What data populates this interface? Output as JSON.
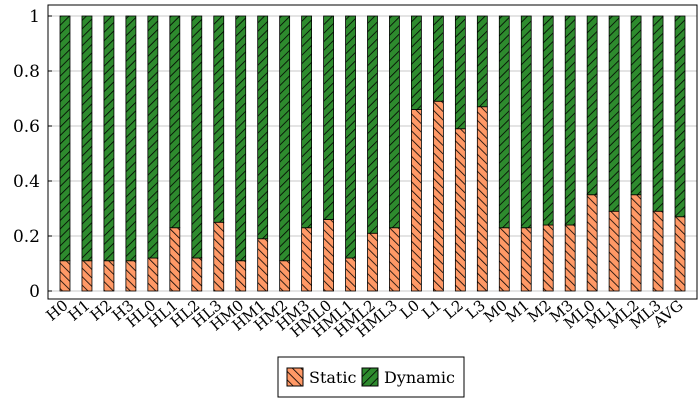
{
  "chart_data": {
    "type": "bar",
    "stacked": true,
    "categories": [
      "H0",
      "H1",
      "H2",
      "H3",
      "HL0",
      "HL1",
      "HL2",
      "HL3",
      "HM0",
      "HM1",
      "HM2",
      "HM3",
      "HML0",
      "HML1",
      "HML2",
      "HML3",
      "L0",
      "L1",
      "L2",
      "L3",
      "M0",
      "M1",
      "M2",
      "M3",
      "ML0",
      "ML1",
      "ML2",
      "ML3",
      "AVG"
    ],
    "series": [
      {
        "name": "Static",
        "color": "#ff9966",
        "hatch": "north-west lines",
        "values": [
          0.11,
          0.11,
          0.11,
          0.11,
          0.12,
          0.23,
          0.12,
          0.25,
          0.11,
          0.19,
          0.11,
          0.23,
          0.26,
          0.12,
          0.21,
          0.23,
          0.66,
          0.69,
          0.59,
          0.67,
          0.23,
          0.23,
          0.24,
          0.24,
          0.35,
          0.29,
          0.35,
          0.29,
          0.27
        ]
      },
      {
        "name": "Dynamic",
        "color": "#2e8b2e",
        "hatch": "north-east lines",
        "values": [
          0.89,
          0.89,
          0.89,
          0.89,
          0.88,
          0.77,
          0.88,
          0.75,
          0.89,
          0.81,
          0.89,
          0.77,
          0.74,
          0.88,
          0.79,
          0.77,
          0.34,
          0.31,
          0.41,
          0.33,
          0.77,
          0.77,
          0.76,
          0.76,
          0.65,
          0.71,
          0.65,
          0.71,
          0.73
        ]
      }
    ],
    "yticks": [
      0,
      0.2,
      0.4,
      0.6,
      0.8,
      1
    ],
    "ylim": [
      0,
      1
    ],
    "grid": true,
    "legend_position": "bottom-center",
    "title": "",
    "xlabel": "",
    "ylabel": ""
  }
}
